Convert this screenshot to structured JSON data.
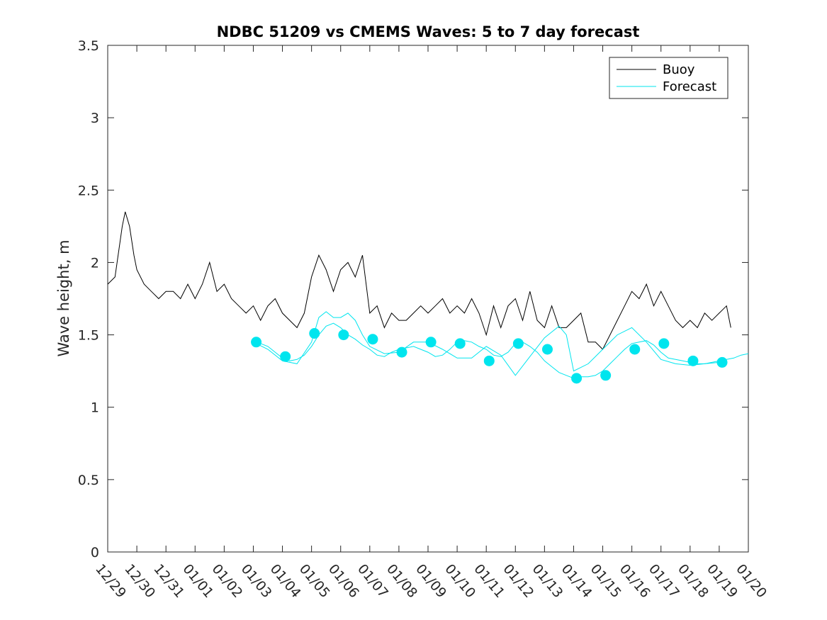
{
  "chart_data": {
    "type": "line",
    "title": "NDBC 51209 vs CMEMS Waves: 5 to 7 day forecast",
    "xlabel": "",
    "ylabel": "Wave height, m",
    "ylim": [
      0,
      3.5
    ],
    "xlim": [
      0,
      22
    ],
    "yticks": [
      0,
      0.5,
      1,
      1.5,
      2,
      2.5,
      3,
      3.5
    ],
    "ytick_labels": [
      "0",
      "0.5",
      "1",
      "1.5",
      "2",
      "2.5",
      "3",
      "3.5"
    ],
    "x_tick_labels": [
      "12/29",
      "12/30",
      "12/31",
      "01/01",
      "01/02",
      "01/03",
      "01/04",
      "01/05",
      "01/06",
      "01/07",
      "01/08",
      "01/09",
      "01/10",
      "01/11",
      "01/12",
      "01/13",
      "01/14",
      "01/15",
      "01/16",
      "01/17",
      "01/18",
      "01/19",
      "01/20"
    ],
    "legend": {
      "location": "top-right",
      "entries": [
        {
          "label": "Buoy",
          "color": "#000000"
        },
        {
          "label": "Forecast",
          "color": "#00e5ee"
        }
      ]
    },
    "series": [
      {
        "name": "Buoy",
        "color": "#000000",
        "x": [
          0,
          0.25,
          0.5,
          0.6,
          0.75,
          0.9,
          1.0,
          1.25,
          1.5,
          1.75,
          2.0,
          2.25,
          2.5,
          2.75,
          3.0,
          3.25,
          3.5,
          3.75,
          4.0,
          4.25,
          4.5,
          4.75,
          5.0,
          5.25,
          5.5,
          5.75,
          6.0,
          6.25,
          6.5,
          6.75,
          7.0,
          7.25,
          7.5,
          7.75,
          8.0,
          8.25,
          8.5,
          8.75,
          9.0,
          9.25,
          9.5,
          9.75,
          10.0,
          10.25,
          10.5,
          10.75,
          11.0,
          11.25,
          11.5,
          11.75,
          12.0,
          12.25,
          12.5,
          12.75,
          13.0,
          13.25,
          13.5,
          13.75,
          14.0,
          14.25,
          14.5,
          14.75,
          15.0,
          15.25,
          15.5,
          15.75,
          16.0,
          16.25,
          16.5,
          16.75,
          17.0,
          17.25,
          17.5,
          17.75,
          18.0,
          18.25,
          18.5,
          18.75,
          19.0,
          19.25,
          19.5,
          19.75,
          20.0,
          20.25,
          20.5,
          20.75,
          21.0,
          21.25,
          21.4
        ],
        "values": [
          1.85,
          1.9,
          2.25,
          2.35,
          2.25,
          2.05,
          1.95,
          1.85,
          1.8,
          1.75,
          1.8,
          1.8,
          1.75,
          1.85,
          1.75,
          1.85,
          2.0,
          1.8,
          1.85,
          1.75,
          1.7,
          1.65,
          1.7,
          1.6,
          1.7,
          1.75,
          1.65,
          1.6,
          1.55,
          1.65,
          1.9,
          2.05,
          1.95,
          1.8,
          1.95,
          2.0,
          1.9,
          2.05,
          1.65,
          1.7,
          1.55,
          1.65,
          1.6,
          1.6,
          1.65,
          1.7,
          1.65,
          1.7,
          1.75,
          1.65,
          1.7,
          1.65,
          1.75,
          1.65,
          1.5,
          1.7,
          1.55,
          1.7,
          1.75,
          1.6,
          1.8,
          1.6,
          1.55,
          1.7,
          1.55,
          1.55,
          1.6,
          1.65,
          1.45,
          1.45,
          1.4,
          1.5,
          1.6,
          1.7,
          1.8,
          1.75,
          1.85,
          1.7,
          1.8,
          1.7,
          1.6,
          1.55,
          1.6,
          1.55,
          1.65,
          1.6,
          1.65,
          1.7,
          1.55
        ]
      },
      {
        "name": "Forecast",
        "color": "#00e5ee",
        "x": [
          5.0,
          5.25,
          5.5,
          5.75,
          6.0,
          6.25,
          6.5,
          6.75,
          7.0,
          7.25,
          7.5,
          7.75,
          8.0,
          8.25,
          8.5,
          8.75,
          9.0,
          9.25,
          9.5,
          9.75,
          10.0,
          10.25,
          10.5,
          10.75,
          11.0,
          11.25,
          11.5,
          11.75,
          12.0,
          12.25,
          12.5,
          12.75,
          13.0,
          13.25,
          13.5,
          13.75,
          14.0,
          14.25,
          14.5,
          14.75,
          15.0,
          15.25,
          15.5,
          15.75,
          16.0,
          16.25,
          16.5,
          16.75,
          17.0,
          17.25,
          17.5,
          17.75,
          18.0,
          18.25,
          18.5,
          18.75,
          19.0,
          19.25,
          19.5,
          19.75,
          20.0,
          20.25,
          20.5,
          20.75,
          21.0,
          21.25,
          21.5,
          21.75,
          22.0
        ],
        "values": [
          1.45,
          1.44,
          1.42,
          1.38,
          1.34,
          1.32,
          1.33,
          1.36,
          1.42,
          1.5,
          1.56,
          1.58,
          1.55,
          1.5,
          1.47,
          1.43,
          1.4,
          1.36,
          1.35,
          1.38,
          1.4,
          1.41,
          1.42,
          1.4,
          1.38,
          1.35,
          1.36,
          1.4,
          1.45,
          1.46,
          1.45,
          1.42,
          1.4,
          1.36,
          1.35,
          1.38,
          1.44,
          1.45,
          1.42,
          1.38,
          1.32,
          1.28,
          1.24,
          1.22,
          1.2,
          1.21,
          1.21,
          1.22,
          1.25,
          1.3,
          1.35,
          1.4,
          1.44,
          1.45,
          1.46,
          1.43,
          1.38,
          1.34,
          1.33,
          1.32,
          1.31,
          1.3,
          1.3,
          1.31,
          1.32,
          1.33,
          1.34,
          1.36,
          1.37
        ]
      },
      {
        "name": "Forecast (alt)",
        "color": "#00e5ee",
        "x": [
          5.0,
          5.5,
          6.0,
          6.5,
          7.0,
          7.25,
          7.5,
          7.75,
          8.0,
          8.25,
          8.5,
          8.75,
          9.0,
          9.5,
          10.0,
          10.5,
          11.0,
          11.5,
          12.0,
          12.5,
          13.0,
          13.5,
          14.0,
          14.5,
          15.0,
          15.25,
          15.5,
          15.75,
          16.0,
          16.5,
          17.0,
          17.5,
          18.0,
          18.5,
          19.0,
          19.5,
          20.0,
          20.5,
          21.0
        ],
        "values": [
          1.45,
          1.4,
          1.32,
          1.3,
          1.45,
          1.62,
          1.66,
          1.62,
          1.62,
          1.65,
          1.6,
          1.5,
          1.42,
          1.37,
          1.38,
          1.45,
          1.45,
          1.4,
          1.34,
          1.34,
          1.42,
          1.36,
          1.22,
          1.35,
          1.48,
          1.52,
          1.56,
          1.5,
          1.25,
          1.3,
          1.4,
          1.5,
          1.55,
          1.45,
          1.33,
          1.3,
          1.29,
          1.3,
          1.31
        ]
      }
    ],
    "markers": {
      "name": "Forecast daily points",
      "color": "#00e5ee",
      "x": [
        5.1,
        6.1,
        7.1,
        8.1,
        9.1,
        10.1,
        11.1,
        12.1,
        13.1,
        14.1,
        15.1,
        16.1,
        17.1,
        18.1,
        19.1,
        20.1,
        21.1
      ],
      "values": [
        1.45,
        1.35,
        1.51,
        1.5,
        1.47,
        1.38,
        1.45,
        1.44,
        1.32,
        1.44,
        1.4,
        1.2,
        1.22,
        1.4,
        1.44,
        1.32,
        1.31
      ]
    }
  }
}
